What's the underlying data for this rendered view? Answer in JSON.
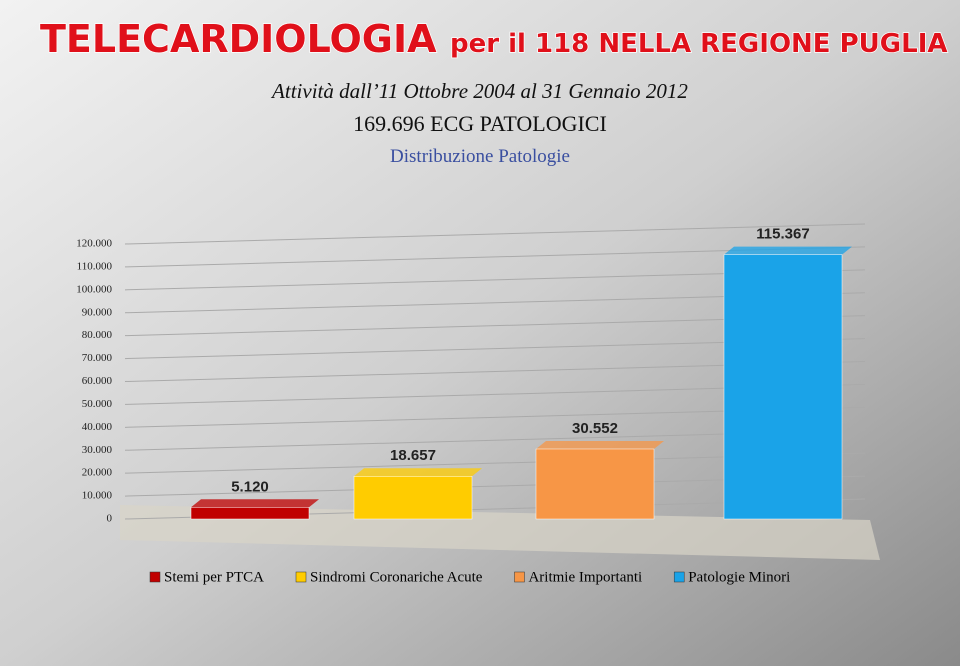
{
  "header": {
    "title": "TELECARDIOLOGIA",
    "title_suffix": "per il 118 NELLA REGIONE PUGLIA"
  },
  "chart_data": {
    "type": "bar",
    "subtitle": "Attività dall’11 Ottobre 2004 al 31 Gennaio 2012",
    "title": "169.696 ECG PATOLOGICI",
    "caption": "Distribuzione Patologie",
    "series": [
      {
        "name": "Stemi per PTCA",
        "color": "#c00000",
        "values": [
          5120
        ],
        "value_labels": [
          "5.120"
        ]
      },
      {
        "name": "Sindromi Coronariche Acute",
        "color": "#ffcc00",
        "values": [
          18657
        ],
        "value_labels": [
          "18.657"
        ]
      },
      {
        "name": "Aritmie Importanti",
        "color": "#f79646",
        "values": [
          30552
        ],
        "value_labels": [
          "30.552"
        ]
      },
      {
        "name": "Patologie Minori",
        "color": "#1aa3e8",
        "values": [
          115367
        ],
        "value_labels": [
          "115.367"
        ]
      }
    ],
    "ylim": [
      0,
      120000
    ],
    "yticks": [
      0,
      {
        "value": 10000,
        "label": "10.000"
      },
      {
        "value": 20000,
        "label": "20.000"
      },
      {
        "value": 30000,
        "label": "30.000"
      },
      {
        "value": 40000,
        "label": "40.000"
      },
      {
        "value": 50000,
        "label": "50.000"
      },
      {
        "value": 60000,
        "label": "60.000"
      },
      {
        "value": 70000,
        "label": "70.000"
      },
      {
        "value": 80000,
        "label": "80.000"
      },
      {
        "value": 90000,
        "label": "90.000"
      },
      {
        "value": 100000,
        "label": "100.000"
      },
      {
        "value": 110000,
        "label": "110.000"
      },
      {
        "value": 120000,
        "label": "120.000"
      }
    ],
    "grid": true
  }
}
